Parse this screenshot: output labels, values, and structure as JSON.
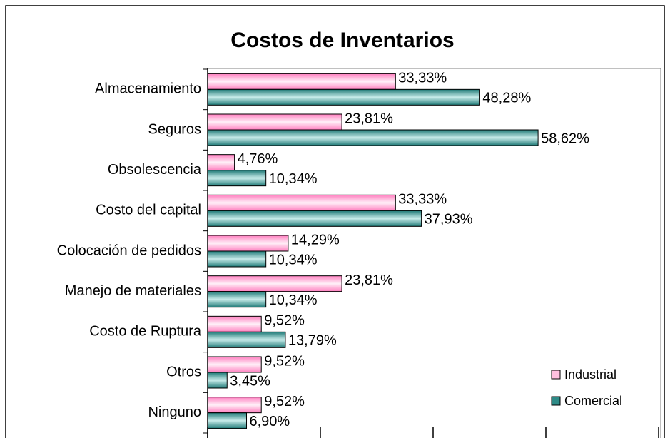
{
  "chart_data": {
    "type": "hbar",
    "title": "Costos de Inventarios",
    "categories": [
      "Almacenamiento",
      "Seguros",
      "Obsolescencia",
      "Costo del capital",
      "Colocación de pedidos",
      "Manejo de materiales",
      "Costo de Ruptura",
      "Otros",
      "Ninguno"
    ],
    "series": [
      {
        "name": "Industrial",
        "color": "#ff99cc",
        "values": [
          33.33,
          23.81,
          4.76,
          33.33,
          14.29,
          23.81,
          9.52,
          9.52,
          9.52
        ],
        "value_labels": [
          "33,33%",
          "23,81%",
          "4,76%",
          "33,33%",
          "14,29%",
          "23,81%",
          "9,52%",
          "9,52%",
          "9,52%"
        ]
      },
      {
        "name": "Comercial",
        "color": "#2e8b87",
        "values": [
          48.28,
          58.62,
          10.34,
          37.93,
          10.34,
          10.34,
          13.79,
          3.45,
          6.9
        ],
        "value_labels": [
          "48,28%",
          "58,62%",
          "10,34%",
          "37,93%",
          "10,34%",
          "10,34%",
          "13,79%",
          "3,45%",
          "6,90%"
        ]
      }
    ],
    "xlim": [
      0,
      80
    ],
    "xticks": [
      0,
      20,
      40,
      60,
      80
    ],
    "legend": "lower right"
  }
}
